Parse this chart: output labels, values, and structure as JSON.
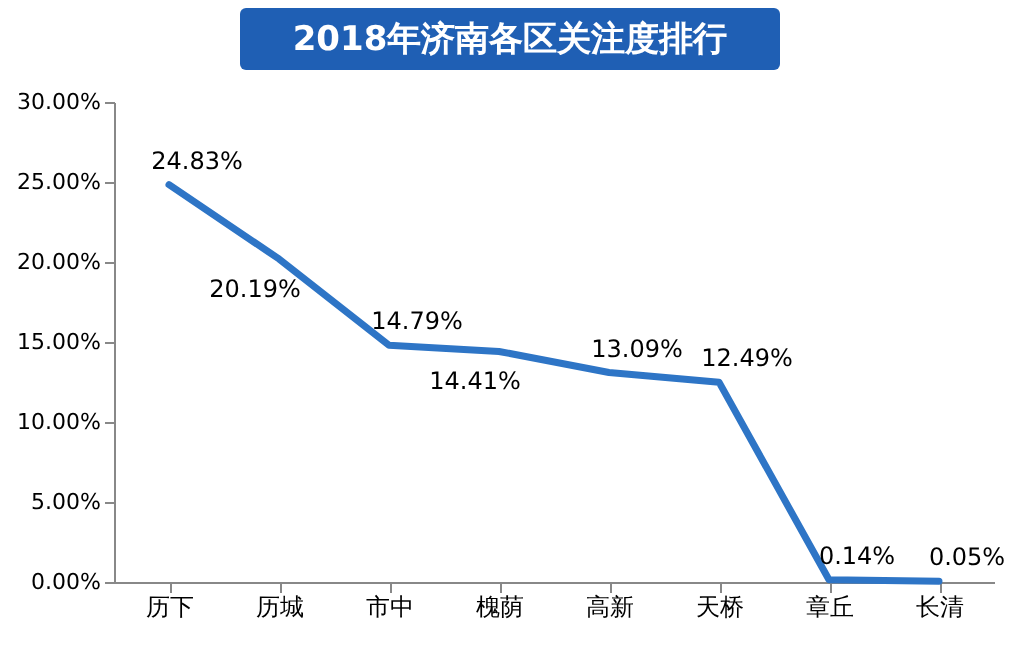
{
  "chart_data": {
    "type": "line",
    "title": "2018年济南各区关注度排行",
    "categories": [
      "历下",
      "历城",
      "市中",
      "槐荫",
      "高新",
      "天桥",
      "章丘",
      "长清"
    ],
    "series": [
      {
        "color": "#2e75c6",
        "values": [
          24.83,
          20.19,
          14.79,
          14.41,
          13.09,
          12.49,
          0.14,
          0.05
        ],
        "value_labels": [
          "24.83%",
          "20.19%",
          "14.79%",
          "14.41%",
          "13.09%",
          "12.49%",
          "0.14%",
          "0.05%"
        ]
      }
    ],
    "ylim": [
      0,
      30
    ],
    "yticks": [
      {
        "value": 0,
        "label": "0.00%"
      },
      {
        "value": 5,
        "label": "5.00%"
      },
      {
        "value": 10,
        "label": "10.00%"
      },
      {
        "value": 15,
        "label": "15.00%"
      },
      {
        "value": 20,
        "label": "20.00%"
      },
      {
        "value": 25,
        "label": "25.00%"
      },
      {
        "value": 30,
        "label": "30.00%"
      }
    ],
    "grid": false,
    "marker": "none",
    "line_style": "solid"
  }
}
